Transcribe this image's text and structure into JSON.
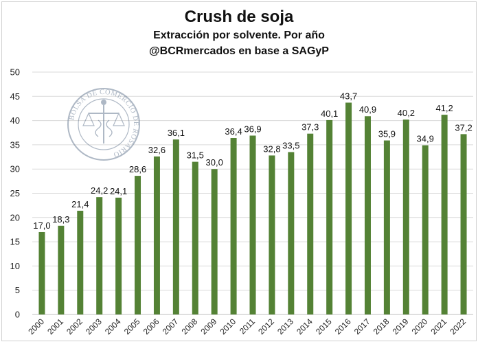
{
  "chart_data": {
    "type": "bar",
    "title": "Crush de soja",
    "subtitle": "Extracción por solvente. Por año",
    "source": "@BCRmercados en base a SAGyP",
    "categories": [
      "2000",
      "2001",
      "2002",
      "2003",
      "2004",
      "2005",
      "2006",
      "2007",
      "2008",
      "2009",
      "2010",
      "2011",
      "2012",
      "2013",
      "2014",
      "2015",
      "2016",
      "2017",
      "2018",
      "2019",
      "2020",
      "2021",
      "2022"
    ],
    "values": [
      17.0,
      18.3,
      21.4,
      24.2,
      24.1,
      28.6,
      32.6,
      36.1,
      31.5,
      30.0,
      36.4,
      36.9,
      32.8,
      33.5,
      37.3,
      40.1,
      43.7,
      40.9,
      35.9,
      40.2,
      34.9,
      41.2,
      37.2
    ],
    "value_labels": [
      "17,0",
      "18,3",
      "21,4",
      "24,2",
      "24,1",
      "28,6",
      "32,6",
      "36,1",
      "31,5",
      "30,0",
      "36,4",
      "36,9",
      "32,8",
      "33,5",
      "37,3",
      "40,1",
      "43,7",
      "40,9",
      "35,9",
      "40,2",
      "34,9",
      "41,2",
      "37,2"
    ],
    "ylim": [
      0,
      50
    ],
    "yticks": [
      0,
      5,
      10,
      15,
      20,
      25,
      30,
      35,
      40,
      45,
      50
    ],
    "grid": true,
    "bar_color": "#548235",
    "watermark_text": "BOLSA DE COMERCIO DE ROSARIO"
  }
}
